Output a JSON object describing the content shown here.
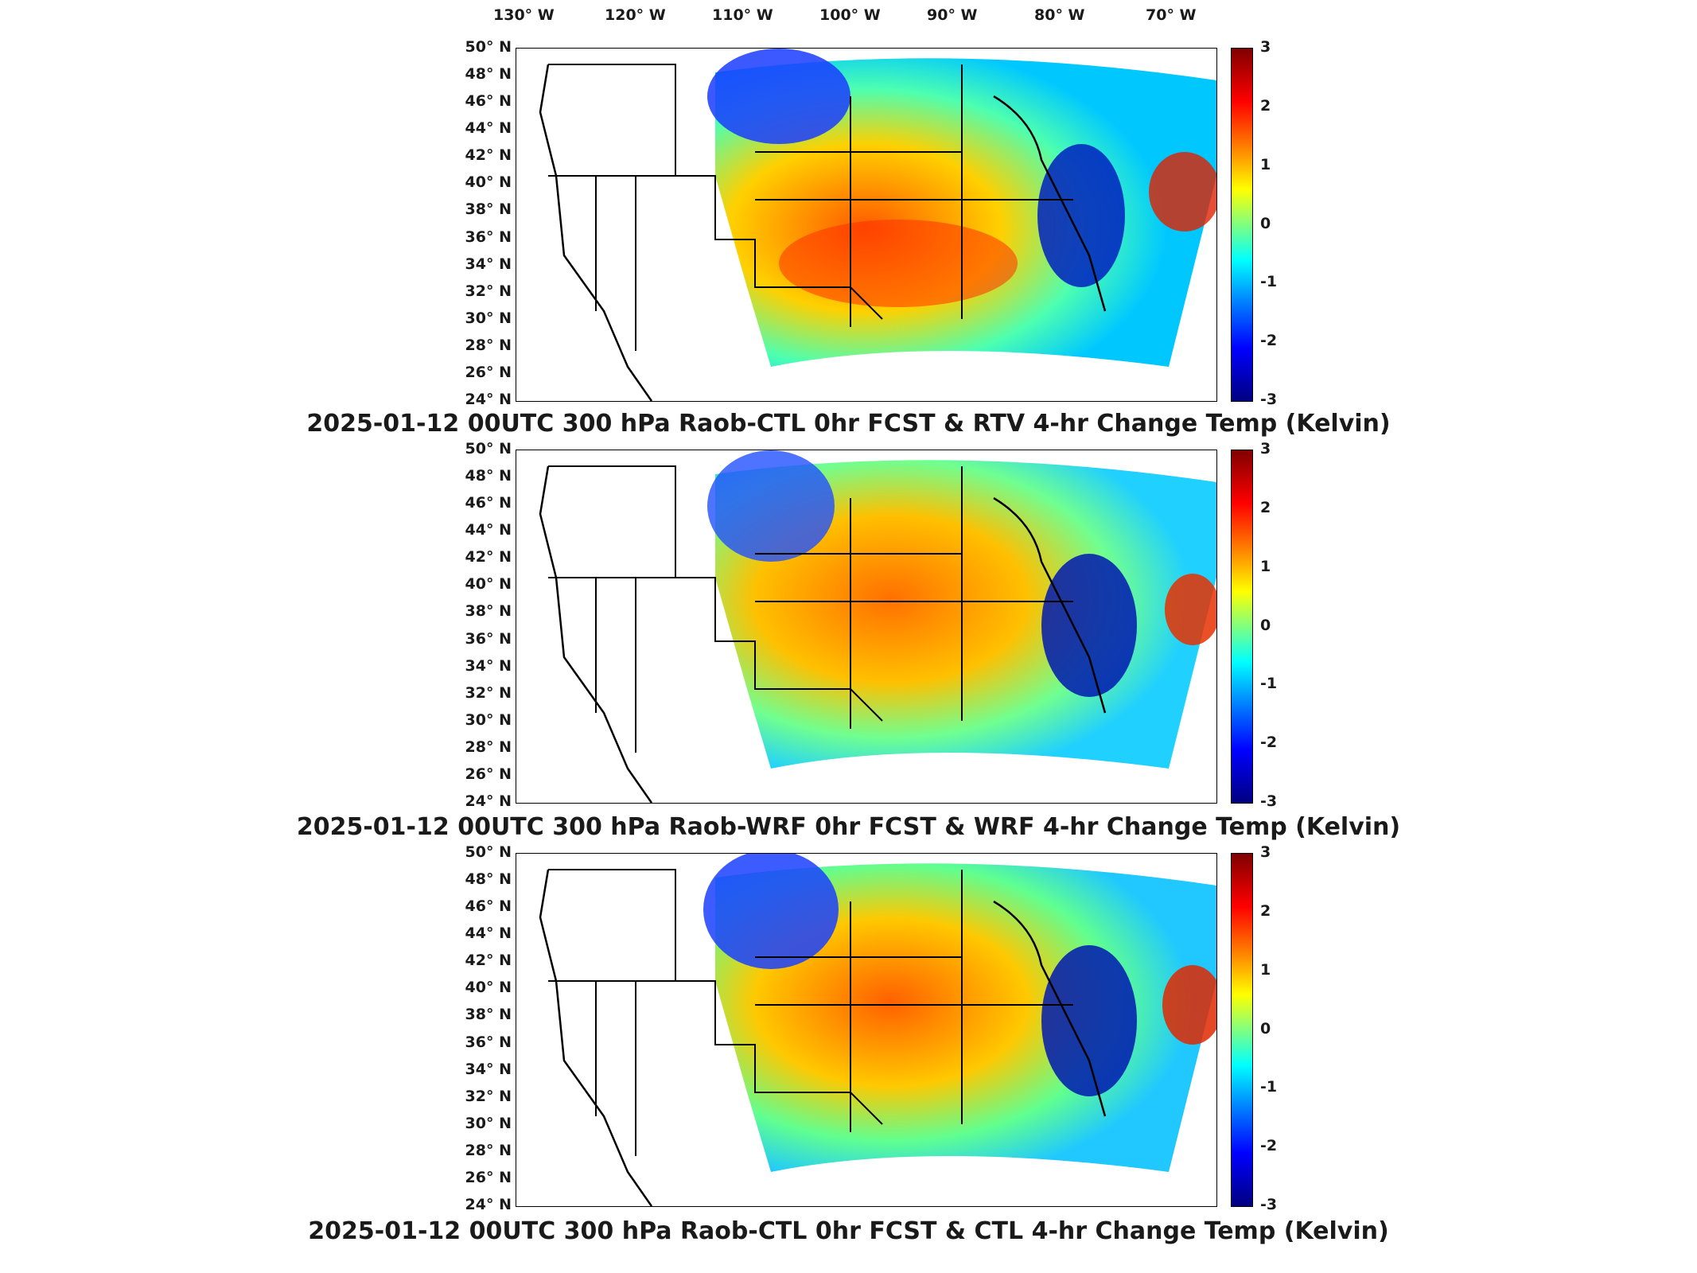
{
  "lon_labels": [
    "130° W",
    "120° W",
    "110° W",
    "100° W",
    "90° W",
    "80° W",
    "70° W"
  ],
  "lat_labels": [
    "50° N",
    "48° N",
    "46° N",
    "44° N",
    "42° N",
    "40° N",
    "38° N",
    "36° N",
    "34° N",
    "32° N",
    "30° N",
    "28° N",
    "26° N",
    "24° N"
  ],
  "colorbar_ticks": [
    "3",
    "2",
    "1",
    "0",
    "-1",
    "-2",
    "-3"
  ],
  "panels": [
    {
      "title": "2025-01-12 00UTC 300 hPa Raob-CTL 0hr FCST & RTV 4-hr Change Temp (Kelvin)"
    },
    {
      "title": "2025-01-12 00UTC 300 hPa Raob-WRF 0hr FCST & WRF 4-hr Change Temp (Kelvin)"
    },
    {
      "title": "2025-01-12 00UTC 300 hPa Raob-CTL 0hr FCST & CTL 4-hr Change Temp (Kelvin)"
    }
  ],
  "colors": {
    "max": "#800000",
    "warm": "#ff0000",
    "neutral": "#80ff80",
    "cold": "#0000ff",
    "min": "#000080"
  }
}
